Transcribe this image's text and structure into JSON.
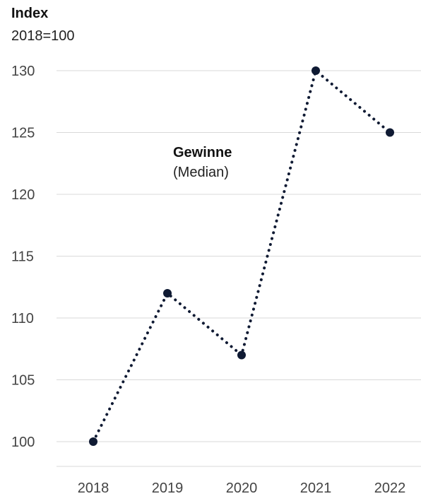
{
  "chart_data": {
    "type": "line",
    "title": "",
    "ylabel": "Index",
    "ylabel_sub": "2018=100",
    "xlabel": "",
    "x": [
      "2018",
      "2019",
      "2020",
      "2021",
      "2022"
    ],
    "series": [
      {
        "name": "Gewinne",
        "name_sub": "(Median)",
        "values": [
          100,
          112,
          107,
          130,
          125
        ],
        "color": "#0f1a33",
        "line_style": "dotted"
      }
    ],
    "yticks": [
      100,
      105,
      110,
      115,
      120,
      125,
      130
    ],
    "ylim": [
      97,
      131
    ],
    "grid": true,
    "legend": "none",
    "gridColor": "#d9d9d9"
  }
}
